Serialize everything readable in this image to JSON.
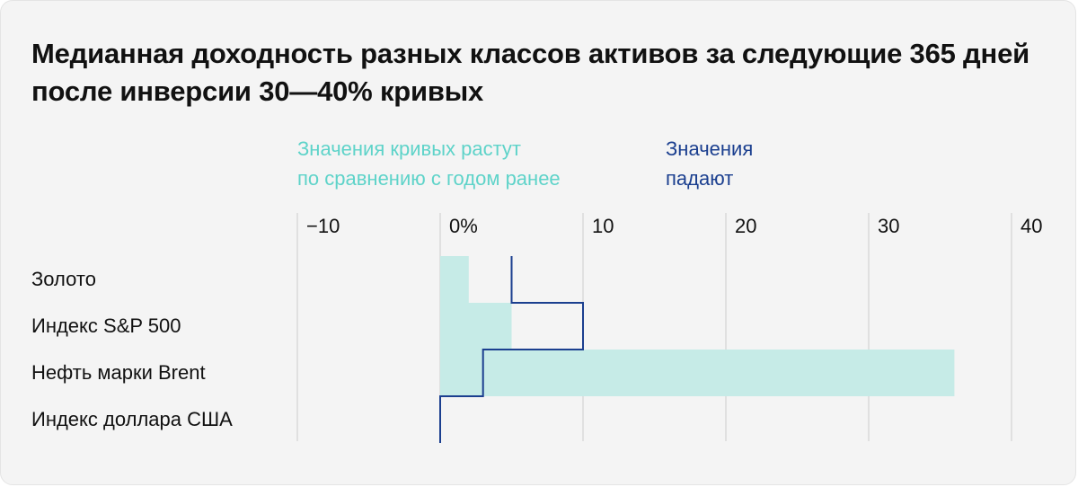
{
  "chart_data": {
    "type": "bar",
    "title": "Медианная доходность разных классов активов за следующие 365 дней после инверсии 30—40% кривых",
    "categories": [
      "Золото",
      "Индекс S&P 500",
      "Нефть марки Brent",
      "Индекс доллара США"
    ],
    "series": [
      {
        "name": "Значения кривых растут по сравнению с годом ранее",
        "values": [
          2,
          5,
          36,
          0
        ],
        "color": "#c6ebe7",
        "style": "filled-bar"
      },
      {
        "name": "Значения падают",
        "values": [
          5,
          10,
          3,
          0
        ],
        "color": "#1b3f8f",
        "style": "step-outline"
      }
    ],
    "xticks": [
      -10,
      0,
      10,
      20,
      30,
      40
    ],
    "xtick_labels": [
      "−10",
      "0%",
      "10",
      "20",
      "30",
      "40"
    ],
    "xlim": [
      -10,
      40
    ],
    "grid": true,
    "legend_placement": "top"
  },
  "legend": {
    "rising_line1": "Значения кривых растут",
    "rising_line2": "по сравнению с годом ранее",
    "falling_line1": "Значения",
    "falling_line2": "падают"
  }
}
